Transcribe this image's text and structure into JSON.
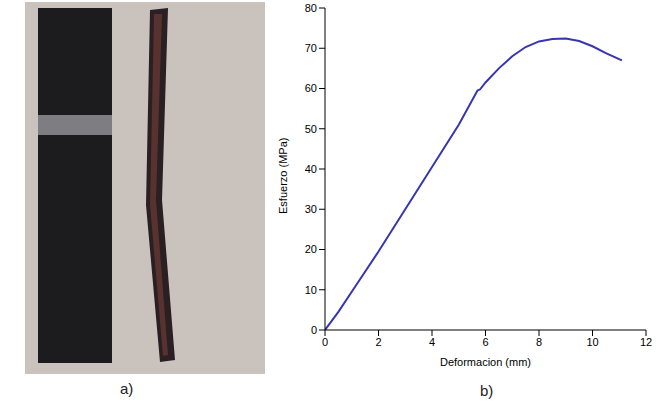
{
  "panels": [
    "a)",
    "b)"
  ],
  "chart_data": {
    "type": "line",
    "x_label": "Deformacion (mm)",
    "y_label": "Esfuerzo (MPa)",
    "x": [
      0,
      0.5,
      1,
      2,
      3,
      4,
      5,
      5.7,
      5.8,
      6,
      6.5,
      7,
      7.5,
      8,
      8.5,
      9,
      9.5,
      10,
      10.5,
      11.1
    ],
    "values": [
      0,
      4.5,
      9.5,
      19.5,
      30,
      40.5,
      51,
      59.5,
      59.8,
      61.5,
      65,
      68,
      70.3,
      71.7,
      72.3,
      72.4,
      71.8,
      70.5,
      68.8,
      67
    ],
    "color": "#3636b0",
    "xlim": [
      0,
      12
    ],
    "xticks": [
      0,
      2,
      4,
      6,
      8,
      10,
      12
    ],
    "ylim": [
      0,
      80
    ],
    "yticks": [
      0,
      10,
      20,
      30,
      40,
      50,
      60,
      70,
      80
    ],
    "grid": false
  }
}
